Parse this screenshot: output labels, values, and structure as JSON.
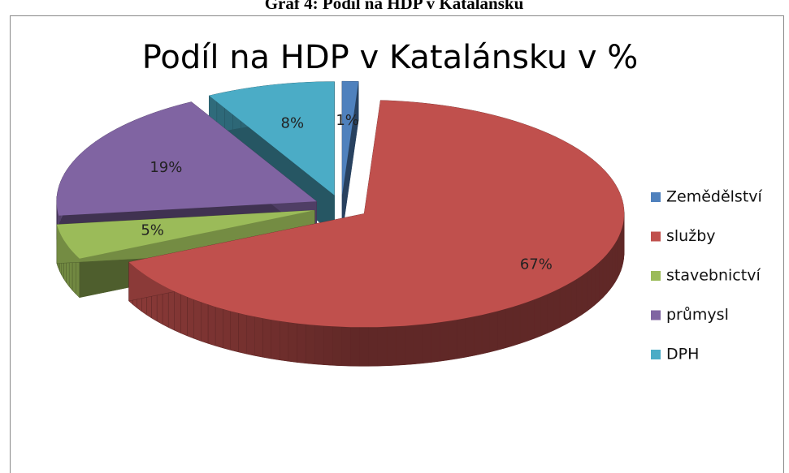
{
  "caption": "Graf 4: Podíl na HDP v Katalánsku",
  "chart_data": {
    "type": "pie",
    "title": "Podíl na HDP v Katalánsku v %",
    "categories": [
      "Zemědělství",
      "služby",
      "stavebnictví",
      "průmysl",
      "DPH"
    ],
    "values": [
      1,
      67,
      5,
      19,
      8
    ],
    "value_labels": [
      "1%",
      "67%",
      "5%",
      "19%",
      "8%"
    ],
    "colors": [
      "#4f81bd",
      "#c0504d",
      "#9bbb59",
      "#8064a2",
      "#4bacc6"
    ],
    "legend": "right"
  }
}
